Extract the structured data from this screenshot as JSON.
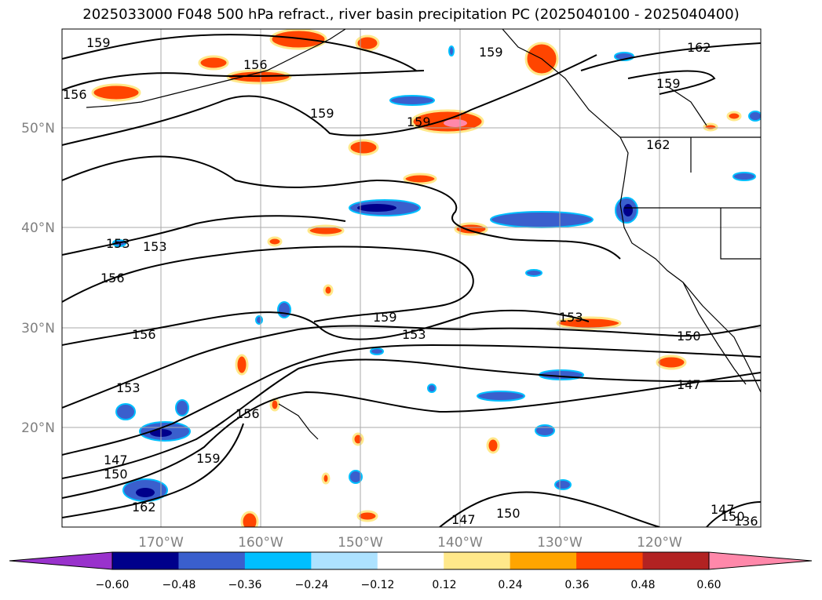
{
  "title": "2025033000 F048 500 hPa refract., river basin precipitation PC (2025040100 - 2025040400)",
  "map": {
    "lat_ticks": [
      "50°N",
      "40°N",
      "30°N",
      "20°N"
    ],
    "lon_ticks": [
      "170°W",
      "160°W",
      "150°W",
      "140°W",
      "130°W",
      "120°W"
    ],
    "contour_labels": [
      "159",
      "156",
      "156",
      "159",
      "159",
      "162",
      "159",
      "159",
      "162",
      "153",
      "153",
      "156",
      "156",
      "153",
      "159",
      "153",
      "150",
      "147",
      "156",
      "150",
      "147",
      "162",
      "159",
      "153",
      "147",
      "150",
      "150",
      "147",
      "136"
    ]
  },
  "colorbar": {
    "ticks": [
      "−0.60",
      "−0.48",
      "−0.36",
      "−0.24",
      "−0.12",
      "0.12",
      "0.24",
      "0.36",
      "0.48",
      "0.60"
    ],
    "colors": [
      "#9932CC",
      "#00008B",
      "#3A5FCD",
      "#00BFFF",
      "#ADE2FF",
      "#FFFFFF",
      "#FFE88A",
      "#FFA500",
      "#FF4500",
      "#B22222",
      "#FF88AA"
    ]
  }
}
